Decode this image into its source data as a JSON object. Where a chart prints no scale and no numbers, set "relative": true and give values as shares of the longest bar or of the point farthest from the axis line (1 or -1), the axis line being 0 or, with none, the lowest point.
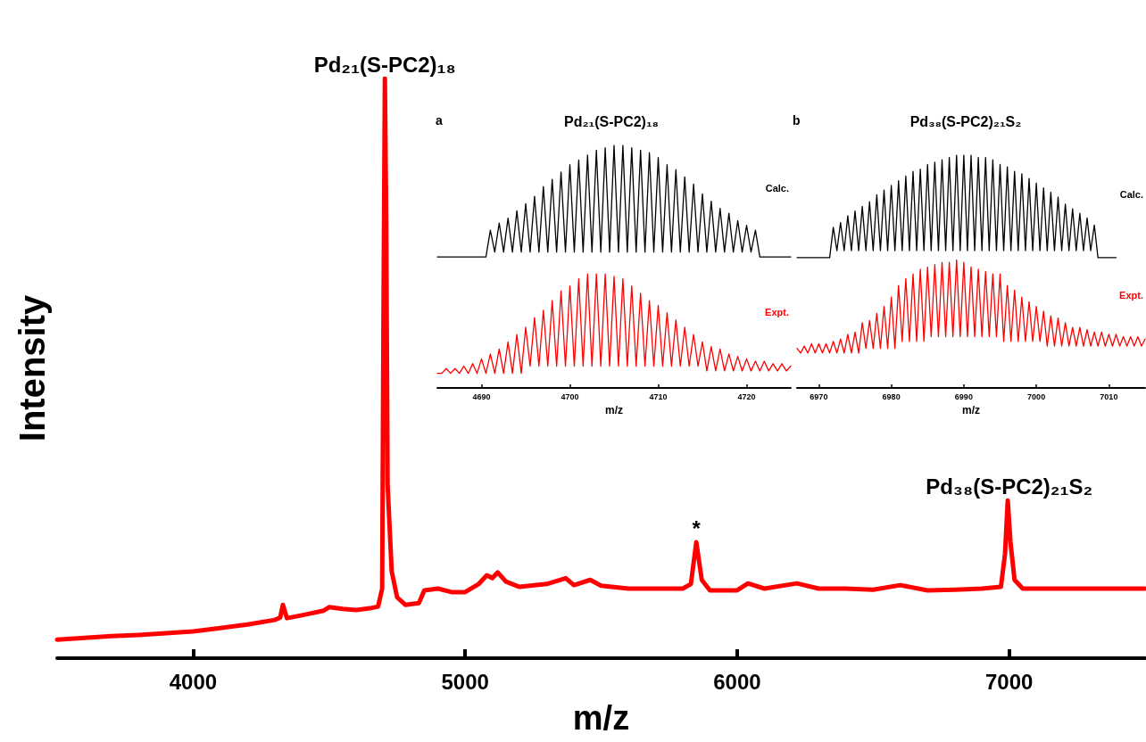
{
  "chart_data": [
    {
      "type": "line",
      "xlabel": "m/z",
      "ylabel": "Intensity",
      "relative": true,
      "xlim": [
        3500,
        7500
      ],
      "xticks": [
        4000,
        5000,
        6000,
        7000
      ],
      "annotations": [
        {
          "text": "Pd₂₁(S-PC2)₁₈",
          "x": 4705,
          "y": 1
        },
        {
          "text": "*",
          "x": 5850,
          "y": 0.2
        },
        {
          "text": "Pd₃₈(S-PC2)₂₁S₂",
          "x": 7000,
          "y": 0.272
        }
      ],
      "series": [
        {
          "color": "#ff0000",
          "x": [
            3500,
            3600,
            3700,
            3800,
            3900,
            4000,
            4100,
            4200,
            4300,
            4320,
            4330,
            4345,
            4400,
            4480,
            4500,
            4550,
            4600,
            4650,
            4680,
            4695,
            4700,
            4705,
            4710,
            4715,
            4730,
            4750,
            4780,
            4830,
            4850,
            4900,
            4950,
            5000,
            5050,
            5080,
            5100,
            5120,
            5150,
            5200,
            5300,
            5370,
            5400,
            5460,
            5500,
            5600,
            5700,
            5800,
            5830,
            5850,
            5870,
            5900,
            6000,
            6040,
            6100,
            6220,
            6300,
            6400,
            6500,
            6600,
            6700,
            6800,
            6900,
            6970,
            6985,
            6995,
            7005,
            7020,
            7050,
            7200,
            7300,
            7400,
            7500
          ],
          "values": [
            0.032,
            0.035,
            0.038,
            0.04,
            0.043,
            0.046,
            0.052,
            0.058,
            0.066,
            0.07,
            0.092,
            0.069,
            0.074,
            0.082,
            0.088,
            0.085,
            0.083,
            0.086,
            0.089,
            0.12,
            0.6,
            1,
            0.75,
            0.3,
            0.15,
            0.105,
            0.092,
            0.095,
            0.117,
            0.12,
            0.114,
            0.114,
            0.128,
            0.143,
            0.138,
            0.148,
            0.132,
            0.123,
            0.128,
            0.138,
            0.126,
            0.135,
            0.125,
            0.12,
            0.12,
            0.12,
            0.128,
            0.2,
            0.135,
            0.117,
            0.117,
            0.129,
            0.12,
            0.129,
            0.12,
            0.12,
            0.118,
            0.126,
            0.117,
            0.118,
            0.12,
            0.123,
            0.18,
            0.272,
            0.2,
            0.135,
            0.12,
            0.12,
            0.12,
            0.12,
            0.12
          ]
        }
      ]
    },
    {
      "type": "line",
      "xlabel": "m/z",
      "relative": true,
      "xlim": [
        4685,
        4725
      ],
      "xticks": [
        4690,
        4700,
        4710,
        4720
      ],
      "title": "Pd₂₁(S-PC2)₁₈",
      "annotations": [
        "a"
      ],
      "series": [
        {
          "name": "Calc.",
          "color": "#000000",
          "x": [
            4685,
            4690.5,
            4691,
            4691.5,
            4692,
            4692.5,
            4693,
            4693.5,
            4694,
            4694.5,
            4695,
            4695.5,
            4696,
            4696.5,
            4697,
            4697.5,
            4698,
            4698.5,
            4699,
            4699.5,
            4700,
            4700.5,
            4701,
            4701.5,
            4702,
            4702.5,
            4703,
            4703.5,
            4704,
            4704.5,
            4705,
            4705.5,
            4706,
            4706.5,
            4707,
            4707.5,
            4708,
            4708.5,
            4709,
            4709.5,
            4710,
            4710.5,
            4711,
            4711.5,
            4712,
            4712.5,
            4713,
            4713.5,
            4714,
            4714.5,
            4715,
            4715.5,
            4716,
            4716.5,
            4717,
            4717.5,
            4718,
            4718.5,
            4719,
            4719.5,
            4720,
            4720.5,
            4721,
            4721.5,
            4725
          ],
          "values": [
            0.54,
            0.54,
            0.65,
            0.56,
            0.68,
            0.56,
            0.7,
            0.56,
            0.73,
            0.56,
            0.76,
            0.56,
            0.79,
            0.56,
            0.83,
            0.56,
            0.86,
            0.56,
            0.89,
            0.56,
            0.92,
            0.56,
            0.94,
            0.56,
            0.96,
            0.56,
            0.98,
            0.56,
            0.99,
            0.56,
            1,
            0.56,
            1,
            0.56,
            0.99,
            0.56,
            0.98,
            0.56,
            0.97,
            0.56,
            0.95,
            0.56,
            0.92,
            0.56,
            0.9,
            0.56,
            0.87,
            0.56,
            0.84,
            0.56,
            0.8,
            0.56,
            0.77,
            0.56,
            0.74,
            0.56,
            0.72,
            0.56,
            0.69,
            0.56,
            0.67,
            0.56,
            0.65,
            0.54,
            0.54
          ]
        },
        {
          "name": "Expt.",
          "color": "#ff0000",
          "x": [
            4685,
            4685.5,
            4686,
            4686.5,
            4687,
            4687.5,
            4688,
            4688.5,
            4689,
            4689.5,
            4690,
            4690.5,
            4691,
            4691.5,
            4692,
            4692.5,
            4693,
            4693.5,
            4694,
            4694.5,
            4695,
            4695.5,
            4696,
            4696.5,
            4697,
            4697.5,
            4698,
            4698.5,
            4699,
            4699.5,
            4700,
            4700.5,
            4701,
            4701.5,
            4702,
            4702.5,
            4703,
            4703.5,
            4704,
            4704.5,
            4705,
            4705.5,
            4706,
            4706.5,
            4707,
            4707.5,
            4708,
            4708.5,
            4709,
            4709.5,
            4710,
            4710.5,
            4711,
            4711.5,
            4712,
            4712.5,
            4713,
            4713.5,
            4714,
            4714.5,
            4715,
            4715.5,
            4716,
            4716.5,
            4717,
            4717.5,
            4718,
            4718.5,
            4719,
            4719.5,
            4720,
            4720.5,
            4721,
            4721.5,
            4722,
            4722.5,
            4723,
            4723.5,
            4724,
            4724.5,
            4725
          ],
          "values": [
            0.06,
            0.06,
            0.08,
            0.06,
            0.08,
            0.06,
            0.09,
            0.06,
            0.1,
            0.06,
            0.12,
            0.06,
            0.14,
            0.06,
            0.16,
            0.06,
            0.19,
            0.06,
            0.22,
            0.06,
            0.25,
            0.09,
            0.29,
            0.09,
            0.32,
            0.09,
            0.36,
            0.09,
            0.4,
            0.09,
            0.42,
            0.09,
            0.45,
            0.09,
            0.47,
            0.09,
            0.47,
            0.09,
            0.47,
            0.09,
            0.46,
            0.09,
            0.45,
            0.09,
            0.42,
            0.09,
            0.39,
            0.09,
            0.36,
            0.09,
            0.34,
            0.09,
            0.31,
            0.09,
            0.28,
            0.09,
            0.25,
            0.09,
            0.22,
            0.09,
            0.19,
            0.07,
            0.17,
            0.07,
            0.16,
            0.07,
            0.14,
            0.07,
            0.13,
            0.07,
            0.12,
            0.07,
            0.11,
            0.07,
            0.11,
            0.07,
            0.1,
            0.07,
            0.1,
            0.07,
            0.09
          ]
        }
      ]
    },
    {
      "type": "line",
      "xlabel": "m/z",
      "relative": true,
      "xlim": [
        6967,
        7015
      ],
      "xticks": [
        6970,
        6980,
        6990,
        7000,
        7010
      ],
      "title": "Pd₃₈(S-PC2)₂₁S₂",
      "annotations": [
        "b"
      ],
      "series": [
        {
          "name": "Calc.",
          "color": "#000000",
          "x": [
            6967,
            6971.5,
            6972,
            6972.5,
            6973,
            6973.5,
            6974,
            6974.5,
            6975,
            6975.5,
            6976,
            6976.5,
            6977,
            6977.5,
            6978,
            6978.5,
            6979,
            6979.5,
            6980,
            6980.5,
            6981,
            6981.5,
            6982,
            6982.5,
            6983,
            6983.5,
            6984,
            6984.5,
            6985,
            6985.5,
            6986,
            6986.5,
            6987,
            6987.5,
            6988,
            6988.5,
            6989,
            6989.5,
            6990,
            6990.5,
            6991,
            6991.5,
            6992,
            6992.5,
            6993,
            6993.5,
            6994,
            6994.5,
            6995,
            6995.5,
            6996,
            6996.5,
            6997,
            6997.5,
            6998,
            6998.5,
            6999,
            6999.5,
            7000,
            7000.5,
            7001,
            7001.5,
            7002,
            7002.5,
            7003,
            7003.5,
            7004,
            7004.5,
            7005,
            7005.5,
            7006,
            7006.5,
            7007,
            7007.5,
            7008,
            7008.5,
            7011
          ],
          "values": [
            0.56,
            0.56,
            0.69,
            0.59,
            0.71,
            0.59,
            0.74,
            0.59,
            0.76,
            0.59,
            0.78,
            0.59,
            0.8,
            0.59,
            0.83,
            0.59,
            0.85,
            0.59,
            0.87,
            0.59,
            0.89,
            0.59,
            0.91,
            0.59,
            0.93,
            0.59,
            0.94,
            0.59,
            0.96,
            0.59,
            0.97,
            0.59,
            0.98,
            0.59,
            0.99,
            0.59,
            1,
            0.59,
            1,
            0.59,
            1,
            0.59,
            0.99,
            0.59,
            0.99,
            0.59,
            0.98,
            0.59,
            0.96,
            0.59,
            0.95,
            0.59,
            0.93,
            0.59,
            0.92,
            0.59,
            0.9,
            0.59,
            0.88,
            0.59,
            0.86,
            0.59,
            0.84,
            0.59,
            0.82,
            0.59,
            0.79,
            0.59,
            0.77,
            0.59,
            0.75,
            0.59,
            0.73,
            0.59,
            0.7,
            0.56,
            0.56
          ]
        },
        {
          "name": "Expt.",
          "color": "#ff0000",
          "x": [
            6967,
            6967.5,
            6968,
            6968.5,
            6969,
            6969.5,
            6970,
            6970.5,
            6971,
            6971.5,
            6972,
            6972.5,
            6973,
            6973.5,
            6974,
            6974.5,
            6975,
            6975.5,
            6976,
            6976.5,
            6977,
            6977.5,
            6978,
            6978.5,
            6979,
            6979.5,
            6980,
            6980.5,
            6981,
            6981.5,
            6982,
            6982.5,
            6983,
            6983.5,
            6984,
            6984.5,
            6985,
            6985.5,
            6986,
            6986.5,
            6987,
            6987.5,
            6988,
            6988.5,
            6989,
            6989.5,
            6990,
            6990.5,
            6991,
            6991.5,
            6992,
            6992.5,
            6993,
            6993.5,
            6994,
            6994.5,
            6995,
            6995.5,
            6996,
            6996.5,
            6997,
            6997.5,
            6998,
            6998.5,
            6999,
            6999.5,
            7000,
            7000.5,
            7001,
            7001.5,
            7002,
            7002.5,
            7003,
            7003.5,
            7004,
            7004.5,
            7005,
            7005.5,
            7006,
            7006.5,
            7007,
            7007.5,
            7008,
            7008.5,
            7009,
            7009.5,
            7010,
            7010.5,
            7011,
            7011.5,
            7012,
            7012.5,
            7013,
            7013.5,
            7014,
            7014.5,
            7015
          ],
          "values": [
            0.17,
            0.15,
            0.18,
            0.15,
            0.19,
            0.15,
            0.19,
            0.15,
            0.19,
            0.15,
            0.2,
            0.15,
            0.21,
            0.15,
            0.23,
            0.15,
            0.24,
            0.15,
            0.28,
            0.17,
            0.29,
            0.17,
            0.32,
            0.17,
            0.35,
            0.17,
            0.39,
            0.17,
            0.44,
            0.2,
            0.47,
            0.2,
            0.49,
            0.2,
            0.51,
            0.2,
            0.52,
            0.22,
            0.53,
            0.22,
            0.54,
            0.22,
            0.54,
            0.22,
            0.55,
            0.22,
            0.54,
            0.22,
            0.52,
            0.22,
            0.51,
            0.22,
            0.5,
            0.22,
            0.49,
            0.22,
            0.49,
            0.2,
            0.44,
            0.2,
            0.42,
            0.2,
            0.39,
            0.2,
            0.37,
            0.2,
            0.35,
            0.2,
            0.33,
            0.18,
            0.31,
            0.18,
            0.3,
            0.18,
            0.28,
            0.18,
            0.26,
            0.18,
            0.26,
            0.18,
            0.25,
            0.18,
            0.24,
            0.18,
            0.24,
            0.18,
            0.23,
            0.18,
            0.23,
            0.18,
            0.22,
            0.18,
            0.22,
            0.18,
            0.22,
            0.18,
            0.21
          ]
        }
      ]
    }
  ]
}
